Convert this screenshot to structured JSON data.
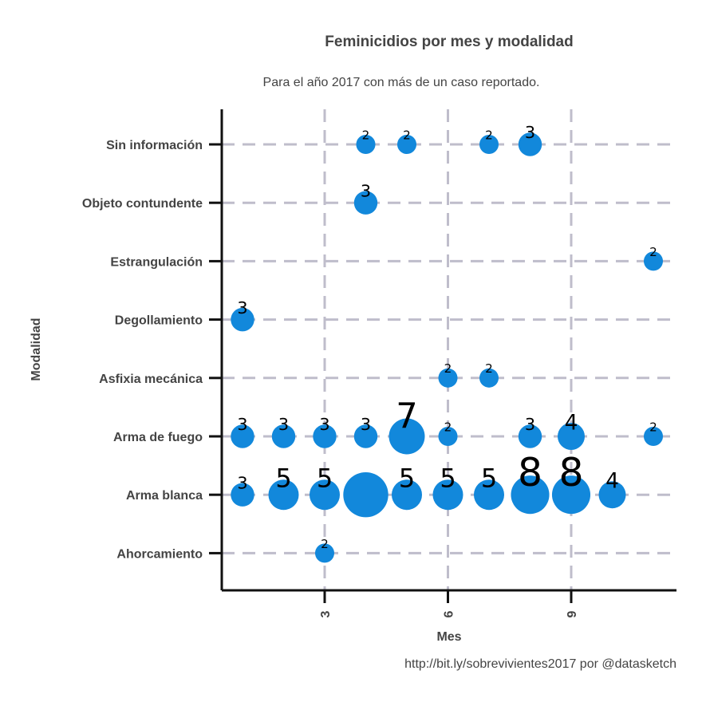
{
  "chart_data": {
    "type": "scatter",
    "title": "Feminicidios por mes y modalidad",
    "subtitle": "Para el año 2017 con más de un caso reportado.",
    "caption": "http://bit.ly/sobrevivientes2017 por @datasketch",
    "xlabel": "Mes",
    "ylabel": "Modalidad",
    "x_ticks": [
      3,
      6,
      9
    ],
    "xlim": [
      0.5,
      12.5
    ],
    "categories": [
      "Ahorcamiento",
      "Arma blanca",
      "Arma de fuego",
      "Asfixia mecánica",
      "Degollamiento",
      "Estrangulación",
      "Objeto contundente",
      "Sin información"
    ],
    "grid": true,
    "bubble_color": "#1288DB",
    "grid_color": "#BFBDCB",
    "points": [
      {
        "modalidad": "Sin información",
        "mes": 4,
        "value": 2
      },
      {
        "modalidad": "Sin información",
        "mes": 5,
        "value": 2
      },
      {
        "modalidad": "Sin información",
        "mes": 7,
        "value": 2
      },
      {
        "modalidad": "Sin información",
        "mes": 8,
        "value": 3
      },
      {
        "modalidad": "Objeto contundente",
        "mes": 4,
        "value": 3
      },
      {
        "modalidad": "Estrangulación",
        "mes": 11,
        "value": 2
      },
      {
        "modalidad": "Degollamiento",
        "mes": 1,
        "value": 3
      },
      {
        "modalidad": "Asfixia mecánica",
        "mes": 6,
        "value": 2
      },
      {
        "modalidad": "Asfixia mecánica",
        "mes": 7,
        "value": 2
      },
      {
        "modalidad": "Arma de fuego",
        "mes": 1,
        "value": 3
      },
      {
        "modalidad": "Arma de fuego",
        "mes": 2,
        "value": 3
      },
      {
        "modalidad": "Arma de fuego",
        "mes": 3,
        "value": 3
      },
      {
        "modalidad": "Arma de fuego",
        "mes": 4,
        "value": 3
      },
      {
        "modalidad": "Arma de fuego",
        "mes": 5,
        "value": 7
      },
      {
        "modalidad": "Arma de fuego",
        "mes": 6,
        "value": 2
      },
      {
        "modalidad": "Arma de fuego",
        "mes": 8,
        "value": 3
      },
      {
        "modalidad": "Arma de fuego",
        "mes": 9,
        "value": 4
      },
      {
        "modalidad": "Arma de fuego",
        "mes": 11,
        "value": 2
      },
      {
        "modalidad": "Arma blanca",
        "mes": 1,
        "value": 3
      },
      {
        "modalidad": "Arma blanca",
        "mes": 2,
        "value": 5
      },
      {
        "modalidad": "Arma blanca",
        "mes": 3,
        "value": 5
      },
      {
        "modalidad": "Arma blanca",
        "mes": 4,
        "value": 11,
        "label_visible": false
      },
      {
        "modalidad": "Arma blanca",
        "mes": 5,
        "value": 5
      },
      {
        "modalidad": "Arma blanca",
        "mes": 6,
        "value": 5
      },
      {
        "modalidad": "Arma blanca",
        "mes": 7,
        "value": 5
      },
      {
        "modalidad": "Arma blanca",
        "mes": 8,
        "value": 8
      },
      {
        "modalidad": "Arma blanca",
        "mes": 9,
        "value": 8
      },
      {
        "modalidad": "Arma blanca",
        "mes": 10,
        "value": 4
      },
      {
        "modalidad": "Ahorcamiento",
        "mes": 3,
        "value": 2
      }
    ]
  }
}
